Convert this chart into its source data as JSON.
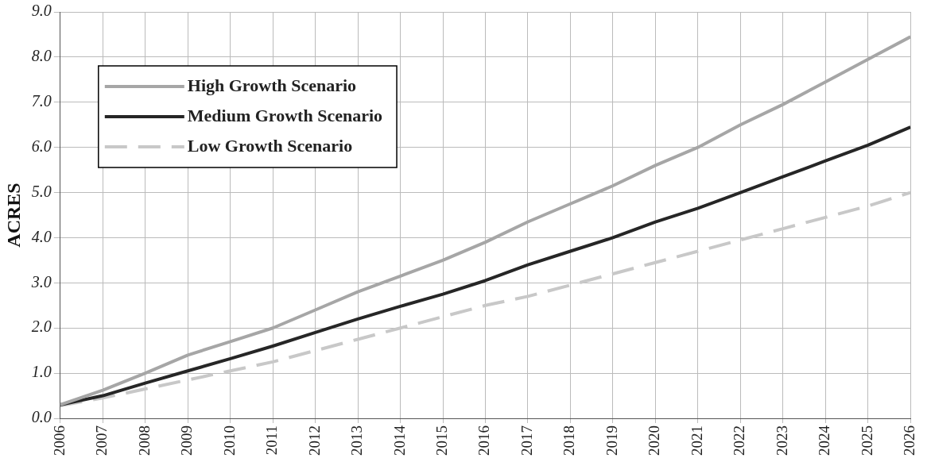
{
  "chart_data": {
    "type": "line",
    "ylabel": "ACRES",
    "x": [
      2006,
      2007,
      2008,
      2009,
      2010,
      2011,
      2012,
      2013,
      2014,
      2015,
      2016,
      2017,
      2018,
      2019,
      2020,
      2021,
      2022,
      2023,
      2024,
      2025,
      2026
    ],
    "series": [
      {
        "name": "High Growth Scenario",
        "color": "#a6a6a6",
        "line_style": "solid",
        "values": [
          0.3,
          0.62,
          1.0,
          1.4,
          1.7,
          2.0,
          2.4,
          2.8,
          3.15,
          3.5,
          3.9,
          4.35,
          4.75,
          5.15,
          5.6,
          6.0,
          6.5,
          6.95,
          7.45,
          7.95,
          8.45
        ]
      },
      {
        "name": "Medium Growth Scenario",
        "color": "#262626",
        "line_style": "solid",
        "values": [
          0.3,
          0.5,
          0.78,
          1.05,
          1.32,
          1.6,
          1.9,
          2.2,
          2.48,
          2.75,
          3.05,
          3.4,
          3.7,
          4.0,
          4.35,
          4.65,
          5.0,
          5.35,
          5.7,
          6.05,
          6.45
        ]
      },
      {
        "name": "Low Growth Scenario",
        "color": "#c8c8c8",
        "line_style": "dashed",
        "values": [
          0.28,
          0.45,
          0.65,
          0.85,
          1.05,
          1.25,
          1.5,
          1.75,
          2.0,
          2.25,
          2.5,
          2.7,
          2.95,
          3.2,
          3.45,
          3.7,
          3.95,
          4.2,
          4.45,
          4.7,
          5.0
        ]
      }
    ],
    "xlim": [
      2006,
      2026
    ],
    "xticks": [
      2006,
      2007,
      2008,
      2009,
      2010,
      2011,
      2012,
      2013,
      2014,
      2015,
      2016,
      2017,
      2018,
      2019,
      2020,
      2021,
      2022,
      2023,
      2024,
      2025,
      2026
    ],
    "ylim": [
      0,
      9
    ],
    "yticks": [
      {
        "value": 0,
        "label": "0.0"
      },
      {
        "value": 1,
        "label": "1.0"
      },
      {
        "value": 2,
        "label": "2.0"
      },
      {
        "value": 3,
        "label": "3.0"
      },
      {
        "value": 4,
        "label": "4.0"
      },
      {
        "value": 5,
        "label": "5.0"
      },
      {
        "value": 6,
        "label": "6.0"
      },
      {
        "value": 7,
        "label": "7.0"
      },
      {
        "value": 8,
        "label": "8.0"
      },
      {
        "value": 9,
        "label": "9.0"
      }
    ],
    "grid": true,
    "legend": "top left",
    "marker": "none"
  }
}
